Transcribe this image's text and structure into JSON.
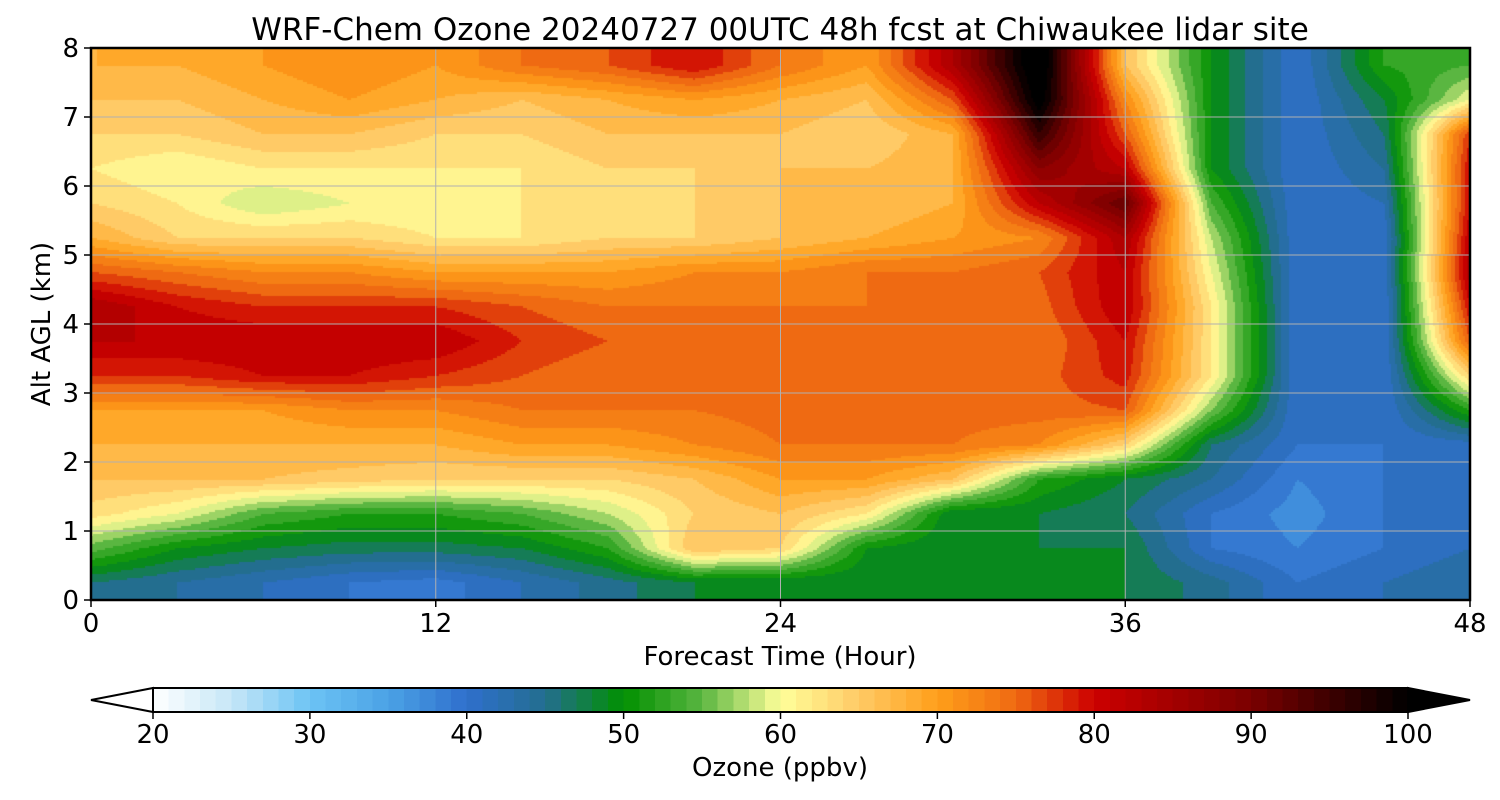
{
  "chart_data": {
    "type": "heatmap",
    "title": "WRF-Chem Ozone  20240727 00UTC 48h fcst at Chiwaukee lidar site",
    "xlabel": "Forecast Time (Hour)",
    "ylabel": "Alt AGL (km)",
    "xlim": [
      0,
      48
    ],
    "ylim": [
      0,
      8
    ],
    "xticks": [
      "0",
      "12",
      "24",
      "36",
      "48"
    ],
    "yticks": [
      "0",
      "1",
      "2",
      "3",
      "4",
      "5",
      "6",
      "7",
      "8"
    ],
    "grid": true,
    "x_hours": [
      0,
      3,
      6,
      9,
      12,
      15,
      18,
      21,
      24,
      27,
      30,
      33,
      36,
      39,
      42,
      45,
      48
    ],
    "z_km": [
      0.25,
      0.75,
      1.25,
      1.75,
      2.25,
      2.75,
      3.25,
      3.75,
      4.25,
      4.75,
      5.25,
      5.75,
      6.25,
      6.75,
      7.25,
      7.75
    ],
    "ozone_ppbv": [
      [
        46,
        44,
        42,
        40,
        39,
        42,
        45,
        48,
        48,
        48,
        48,
        48,
        48,
        45,
        40,
        42,
        44
      ],
      [
        55,
        50,
        48,
        47,
        47,
        48,
        52,
        66,
        64,
        50,
        48,
        48,
        48,
        40,
        38,
        40,
        42
      ],
      [
        63,
        60,
        54,
        52,
        52,
        54,
        58,
        64,
        66,
        62,
        48,
        48,
        46,
        40,
        37,
        40,
        42
      ],
      [
        66,
        66,
        66,
        65,
        64,
        64,
        64,
        66,
        70,
        70,
        66,
        52,
        48,
        44,
        38,
        40,
        42
      ],
      [
        68,
        68,
        68,
        68,
        68,
        70,
        70,
        72,
        74,
        74,
        74,
        72,
        64,
        46,
        40,
        40,
        41
      ],
      [
        70,
        70,
        70,
        72,
        72,
        74,
        74,
        74,
        75,
        75,
        75,
        75,
        76,
        56,
        40,
        40,
        52
      ],
      [
        78,
        78,
        80,
        80,
        78,
        76,
        74,
        74,
        74,
        74,
        74,
        75,
        79,
        62,
        40,
        40,
        64
      ],
      [
        82,
        82,
        82,
        82,
        82,
        78,
        76,
        74,
        74,
        74,
        74,
        74,
        80,
        62,
        40,
        40,
        76
      ],
      [
        84,
        80,
        78,
        78,
        78,
        76,
        74,
        74,
        74,
        74,
        75,
        75,
        82,
        62,
        40,
        40,
        80
      ],
      [
        76,
        74,
        72,
        72,
        70,
        70,
        70,
        72,
        72,
        74,
        74,
        76,
        82,
        60,
        40,
        40,
        84
      ],
      [
        68,
        64,
        64,
        64,
        62,
        62,
        64,
        64,
        66,
        68,
        70,
        72,
        84,
        58,
        40,
        40,
        82
      ],
      [
        64,
        62,
        58,
        60,
        60,
        62,
        62,
        64,
        66,
        66,
        68,
        82,
        92,
        54,
        40,
        42,
        80
      ],
      [
        62,
        60,
        62,
        62,
        62,
        62,
        64,
        64,
        66,
        66,
        68,
        88,
        82,
        50,
        40,
        44,
        80
      ],
      [
        64,
        64,
        66,
        66,
        64,
        64,
        66,
        66,
        66,
        64,
        68,
        96,
        76,
        50,
        40,
        46,
        78
      ],
      [
        66,
        66,
        68,
        70,
        68,
        66,
        68,
        70,
        68,
        66,
        76,
        102,
        72,
        50,
        40,
        48,
        60
      ],
      [
        68,
        68,
        70,
        72,
        70,
        74,
        76,
        80,
        74,
        70,
        84,
        104,
        66,
        50,
        40,
        52,
        54
      ]
    ],
    "colorbar": {
      "label": "Ozone  (ppbv)",
      "min": 20,
      "max": 100,
      "ticks": [
        "20",
        "30",
        "40",
        "50",
        "60",
        "70",
        "80",
        "90",
        "100"
      ],
      "extend": "both",
      "colors": {
        "20": "#ffffff",
        "25": "#c6e6f7",
        "30": "#6cc3f4",
        "35": "#4ba2e6",
        "40": "#2f6fcc",
        "45": "#236e8f",
        "50": "#019000",
        "55": "#5ab641",
        "60": "#ffff9a",
        "65": "#ffca66",
        "70": "#ff9f1a",
        "75": "#ef6a12",
        "80": "#cc0000",
        "90": "#7a0000",
        "100": "#000000"
      }
    }
  }
}
